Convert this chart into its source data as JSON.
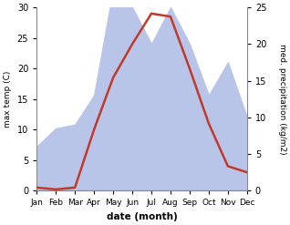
{
  "months": [
    "Jan",
    "Feb",
    "Mar",
    "Apr",
    "May",
    "Jun",
    "Jul",
    "Aug",
    "Sep",
    "Oct",
    "Nov",
    "Dec"
  ],
  "temp": [
    0.5,
    0.2,
    0.5,
    10.0,
    18.5,
    24.0,
    29.0,
    28.5,
    20.0,
    11.0,
    4.0,
    3.0
  ],
  "precip": [
    6.0,
    8.5,
    9.0,
    13.0,
    27.5,
    25.0,
    20.0,
    25.0,
    20.0,
    13.0,
    17.5,
    10.0
  ],
  "temp_color": "#c0392b",
  "precip_fill_color": "#b8c4e8",
  "temp_ylim": [
    0,
    30
  ],
  "precip_ylim": [
    0,
    25
  ],
  "temp_yticks": [
    0,
    5,
    10,
    15,
    20,
    25,
    30
  ],
  "precip_yticks": [
    0,
    5,
    10,
    15,
    20,
    25
  ],
  "xlabel": "date (month)",
  "ylabel_left": "max temp (C)",
  "ylabel_right": "med. precipitation (kg/m2)",
  "background_color": "#ffffff"
}
